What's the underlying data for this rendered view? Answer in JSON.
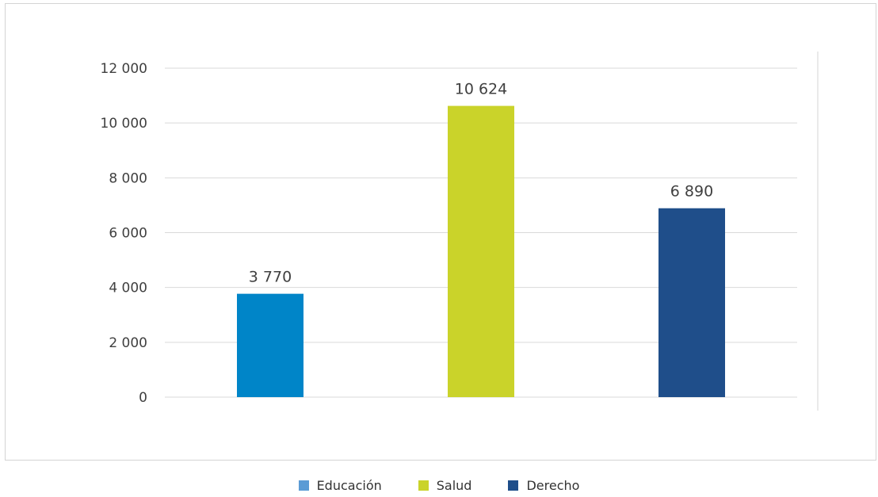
{
  "chart_data": {
    "type": "bar",
    "categories": [
      "Educación",
      "Salud",
      "Derecho"
    ],
    "values": [
      3770,
      10624,
      6890
    ],
    "data_labels": [
      "3 770",
      "10 624",
      "6 890"
    ],
    "colors": [
      "#0085c8",
      "#cad32a",
      "#1f4e8a"
    ],
    "ylim": [
      0,
      12000
    ],
    "yticks": [
      0,
      2000,
      4000,
      6000,
      8000,
      10000,
      12000
    ],
    "ytick_labels": [
      "0",
      "2 000",
      "4 000",
      "6 000",
      "8 000",
      "10 000",
      "12 000"
    ],
    "grid": true,
    "legend_position": "bottom",
    "title": "",
    "xlabel": "",
    "ylabel": ""
  },
  "legend": {
    "items": [
      {
        "label": "Educación",
        "color": "#5b9bd5"
      },
      {
        "label": "Salud",
        "color": "#cad32a"
      },
      {
        "label": "Derecho",
        "color": "#1f4e8a"
      }
    ]
  }
}
